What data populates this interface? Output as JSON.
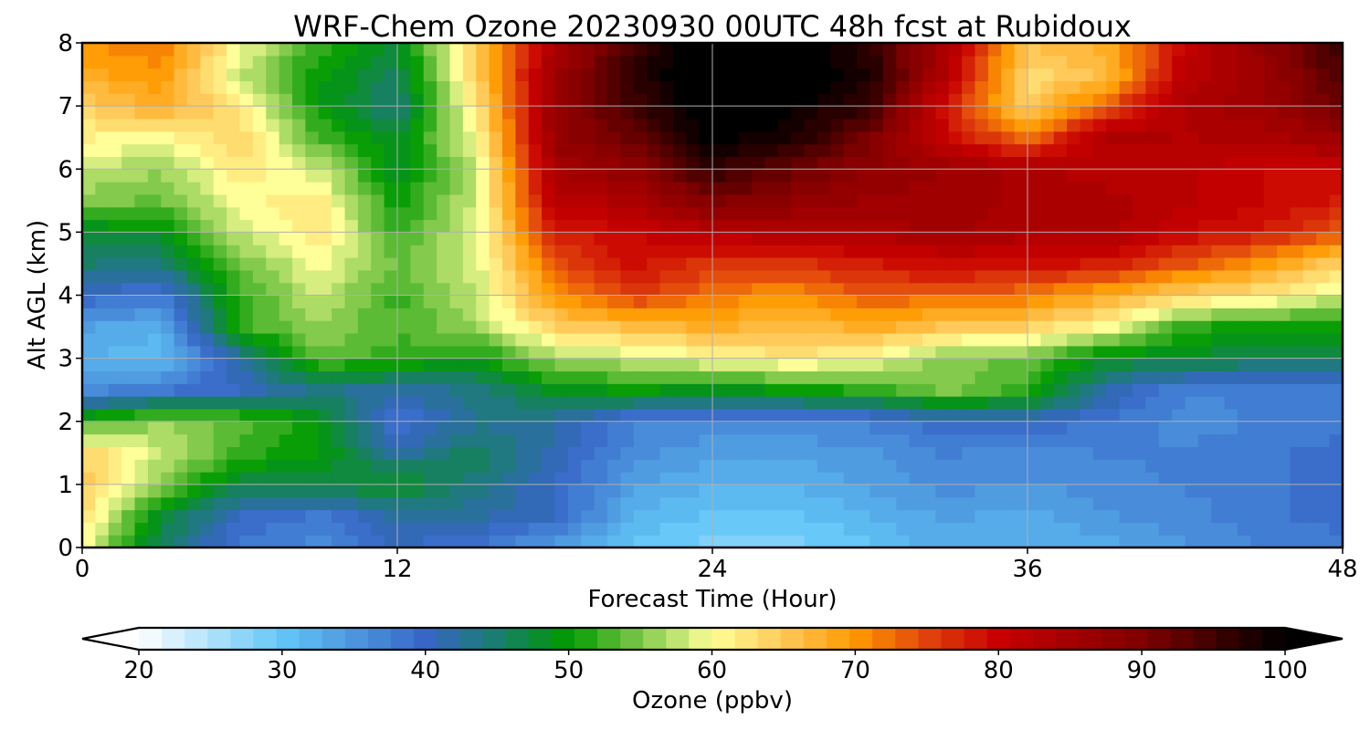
{
  "chart_data": {
    "type": "heatmap",
    "title": "WRF-Chem Ozone  20230930 00UTC 48h fcst at Rubidoux",
    "xlabel": "Forecast Time (Hour)",
    "ylabel": "Alt AGL (km)",
    "xlim": [
      0,
      48
    ],
    "ylim": [
      0,
      8
    ],
    "xticks": [
      0,
      12,
      24,
      36,
      48
    ],
    "yticks": [
      0,
      1,
      2,
      3,
      4,
      5,
      6,
      7,
      8
    ],
    "grid": true,
    "colorbar": {
      "label": "Ozone  (ppbv)",
      "ticks": [
        20,
        30,
        40,
        50,
        60,
        70,
        80,
        90,
        100
      ],
      "range": [
        20,
        100
      ],
      "extend": "both",
      "placement": "bottom",
      "stops": [
        {
          "value": 20,
          "color": "#ffffff"
        },
        {
          "value": 30,
          "color": "#62c6f7"
        },
        {
          "value": 40,
          "color": "#3766c6"
        },
        {
          "value": 45,
          "color": "#1a7d6e"
        },
        {
          "value": 50,
          "color": "#009a00"
        },
        {
          "value": 55,
          "color": "#7ec84a"
        },
        {
          "value": 60,
          "color": "#ffff99"
        },
        {
          "value": 65,
          "color": "#ffc857"
        },
        {
          "value": 70,
          "color": "#ff9900"
        },
        {
          "value": 75,
          "color": "#e0430c"
        },
        {
          "value": 80,
          "color": "#c80000"
        },
        {
          "value": 90,
          "color": "#800000"
        },
        {
          "value": 100,
          "color": "#000000"
        }
      ]
    },
    "x": [
      0,
      3,
      6,
      9,
      12,
      15,
      18,
      21,
      24,
      27,
      30,
      33,
      36,
      39,
      42,
      45,
      48
    ],
    "y": [
      0,
      0.5,
      1,
      1.5,
      2,
      2.5,
      3,
      3.5,
      4,
      4.5,
      5,
      5.5,
      6,
      6.5,
      7,
      7.5,
      8
    ],
    "z": [
      [
        60,
        45,
        38,
        36,
        40,
        38,
        34,
        30,
        28,
        28,
        30,
        33,
        32,
        33,
        35,
        37,
        38
      ],
      [
        63,
        48,
        40,
        38,
        42,
        42,
        40,
        32,
        30,
        30,
        32,
        34,
        33,
        35,
        36,
        38,
        39
      ],
      [
        65,
        55,
        47,
        47,
        49,
        44,
        40,
        34,
        32,
        32,
        34,
        36,
        35,
        36,
        37,
        38,
        39
      ],
      [
        64,
        58,
        52,
        50,
        42,
        46,
        41,
        36,
        34,
        34,
        35,
        37,
        36,
        37,
        37,
        38,
        39
      ],
      [
        52,
        56,
        54,
        50,
        38,
        43,
        42,
        37,
        36,
        36,
        37,
        40,
        40,
        38,
        36,
        37,
        38
      ],
      [
        36,
        38,
        40,
        44,
        42,
        44,
        49,
        50,
        49,
        50,
        52,
        55,
        52,
        42,
        37,
        37,
        38
      ],
      [
        32,
        31,
        42,
        54,
        52,
        50,
        56,
        58,
        60,
        62,
        60,
        55,
        54,
        48,
        48,
        46,
        46
      ],
      [
        34,
        32,
        52,
        56,
        53,
        56,
        64,
        66,
        68,
        66,
        68,
        65,
        64,
        60,
        52,
        50,
        50
      ],
      [
        40,
        38,
        52,
        58,
        52,
        58,
        70,
        76,
        72,
        70,
        74,
        73,
        72,
        68,
        64,
        62,
        58
      ],
      [
        45,
        44,
        54,
        60,
        54,
        58,
        74,
        79,
        76,
        76,
        78,
        80,
        79,
        78,
        74,
        70,
        64
      ],
      [
        48,
        49,
        58,
        62,
        52,
        59,
        78,
        80,
        82,
        84,
        84,
        85,
        84,
        84,
        80,
        78,
        74
      ],
      [
        55,
        54,
        60,
        62,
        50,
        58,
        82,
        84,
        90,
        88,
        86,
        86,
        84,
        84,
        82,
        80,
        78
      ],
      [
        58,
        56,
        62,
        58,
        48,
        58,
        85,
        88,
        96,
        92,
        88,
        86,
        84,
        82,
        82,
        80,
        80
      ],
      [
        61,
        60,
        64,
        53,
        48,
        60,
        87,
        92,
        100,
        98,
        90,
        80,
        72,
        84,
        83,
        84,
        86
      ],
      [
        64,
        68,
        62,
        50,
        44,
        62,
        87,
        95,
        102,
        100,
        96,
        78,
        64,
        74,
        84,
        86,
        92
      ],
      [
        68,
        70,
        58,
        50,
        46,
        64,
        86,
        96,
        104,
        102,
        98,
        82,
        63,
        66,
        82,
        86,
        94
      ],
      [
        70,
        72,
        60,
        52,
        48,
        64,
        84,
        95,
        104,
        102,
        96,
        84,
        66,
        68,
        80,
        88,
        96
      ]
    ]
  }
}
